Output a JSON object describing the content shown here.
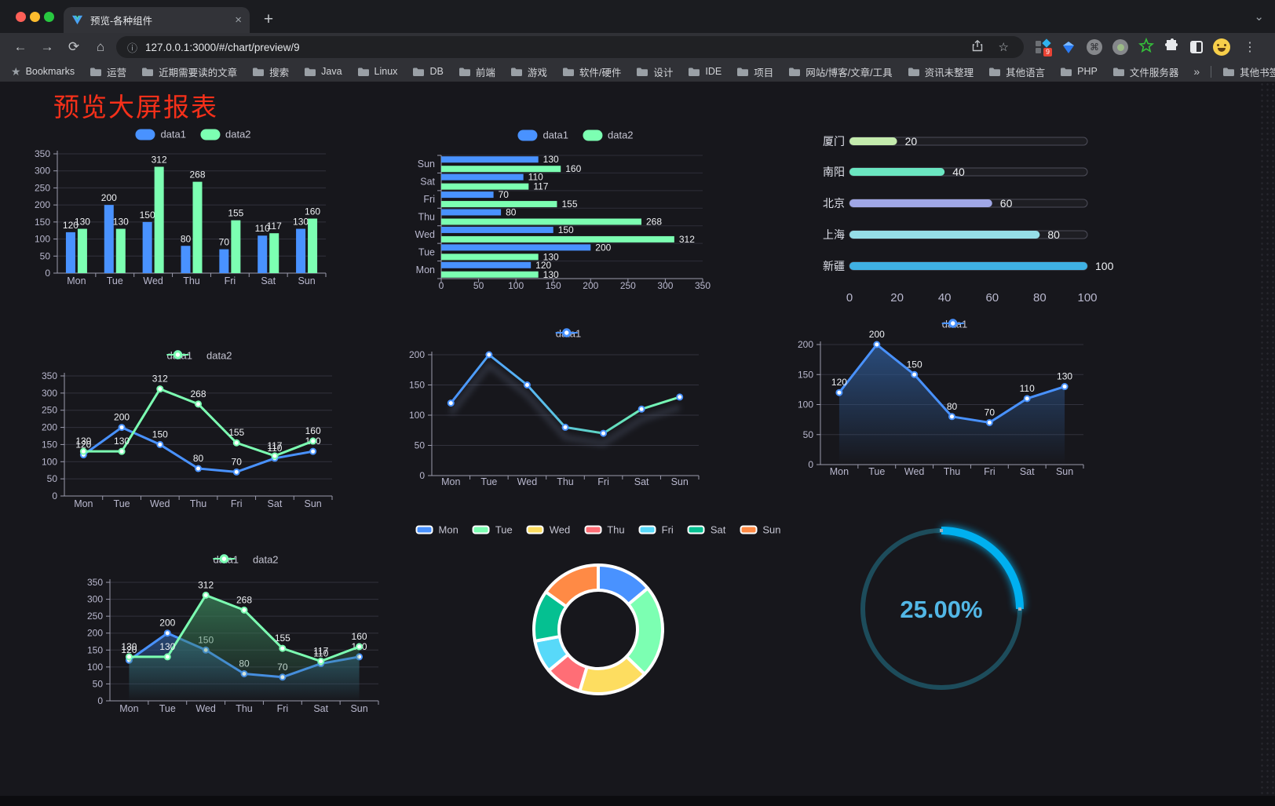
{
  "browser": {
    "tab": {
      "title": "预览-各种组件",
      "close": "×",
      "new_tab": "+",
      "chevron": "⌄"
    },
    "nav": {
      "back": "←",
      "forward": "→",
      "reload": "⟳",
      "home": "⌂"
    },
    "url": {
      "info": "ⓘ",
      "text": "127.0.0.1:3000/#/chart/preview/9"
    },
    "extensions_badge": "9",
    "menu_dots": "⋮",
    "bookmarks_bar": {
      "star": "★",
      "root_label": "Bookmarks",
      "folders": [
        "运营",
        "近期需要读的文章",
        "搜索",
        "Java",
        "Linux",
        "DB",
        "前端",
        "游戏",
        "软件/硬件",
        "设计",
        "IDE",
        "项目",
        "网站/博客/文章/工具",
        "资讯未整理",
        "其他语言",
        "PHP",
        "文件服务器"
      ],
      "overflow": "»",
      "other": "其他书签"
    }
  },
  "page": {
    "title": "预览大屏报表",
    "title_color": "#f5301a"
  },
  "chart_data": [
    {
      "id": "grouped-bar",
      "type": "bar",
      "categories": [
        "Mon",
        "Tue",
        "Wed",
        "Thu",
        "Fri",
        "Sat",
        "Sun"
      ],
      "series": [
        {
          "name": "data1",
          "color": "#4992ff",
          "values": [
            120,
            200,
            150,
            80,
            70,
            110,
            130
          ]
        },
        {
          "name": "data2",
          "color": "#7cffb2",
          "values": [
            130,
            130,
            312,
            268,
            155,
            117,
            160
          ]
        }
      ],
      "ylim": [
        0,
        350
      ],
      "yticks": [
        0,
        50,
        100,
        150,
        200,
        250,
        300,
        350
      ],
      "legend_position": "top",
      "grid": true,
      "value_labels": true
    },
    {
      "id": "horizontal-bar",
      "type": "bar-horizontal",
      "categories": [
        "Mon",
        "Tue",
        "Wed",
        "Thu",
        "Fri",
        "Sat",
        "Sun"
      ],
      "series": [
        {
          "name": "data1",
          "color": "#4992ff",
          "values": [
            120,
            200,
            150,
            80,
            70,
            110,
            130
          ]
        },
        {
          "name": "data2",
          "color": "#7cffb2",
          "values": [
            130,
            130,
            312,
            268,
            155,
            117,
            160
          ]
        }
      ],
      "xlim": [
        0,
        350
      ],
      "xticks": [
        0,
        50,
        100,
        150,
        200,
        250,
        300,
        350
      ],
      "legend_position": "top",
      "value_labels": true
    },
    {
      "id": "progress-bars",
      "type": "progress",
      "rows": [
        {
          "label": "厦门",
          "value": 20,
          "color": "#c4ebad"
        },
        {
          "label": "南阳",
          "value": 40,
          "color": "#6be6c1"
        },
        {
          "label": "北京",
          "value": 60,
          "color": "#a0a7e6"
        },
        {
          "label": "上海",
          "value": 80,
          "color": "#96dee8"
        },
        {
          "label": "新疆",
          "value": 100,
          "color": "#3fb1e3"
        }
      ],
      "xlim": [
        0,
        100
      ],
      "xticks": [
        0,
        20,
        40,
        60,
        80,
        100
      ]
    },
    {
      "id": "line-two-series",
      "type": "line",
      "categories": [
        "Mon",
        "Tue",
        "Wed",
        "Thu",
        "Fri",
        "Sat",
        "Sun"
      ],
      "series": [
        {
          "name": "data1",
          "color": "#4992ff",
          "values": [
            120,
            200,
            150,
            80,
            70,
            110,
            130
          ]
        },
        {
          "name": "data2",
          "color": "#7cffb2",
          "values": [
            130,
            130,
            312,
            268,
            155,
            117,
            160
          ]
        }
      ],
      "ylim": [
        0,
        350
      ],
      "yticks": [
        0,
        50,
        100,
        150,
        200,
        250,
        300,
        350
      ],
      "value_labels": true
    },
    {
      "id": "line-gradient",
      "type": "line",
      "categories": [
        "Mon",
        "Tue",
        "Wed",
        "Thu",
        "Fri",
        "Sat",
        "Sun"
      ],
      "series": [
        {
          "name": "data1",
          "color": "#4992ff",
          "values": [
            120,
            200,
            150,
            80,
            70,
            110,
            130
          ]
        }
      ],
      "line_gradient": [
        "#4992ff",
        "#58b7f5",
        "#5fd7c0",
        "#7cffb2"
      ],
      "shadow": true,
      "ylim": [
        0,
        200
      ],
      "yticks": [
        0,
        50,
        100,
        150,
        200
      ],
      "value_labels": false
    },
    {
      "id": "line-area-single",
      "type": "line",
      "categories": [
        "Mon",
        "Tue",
        "Wed",
        "Thu",
        "Fri",
        "Sat",
        "Sun"
      ],
      "series": [
        {
          "name": "data1",
          "color": "#4992ff",
          "values": [
            120,
            200,
            150,
            80,
            70,
            110,
            130
          ],
          "area": [
            "rgba(45,85,140,0.85)",
            "rgba(45,85,140,0)"
          ]
        }
      ],
      "ylim": [
        0,
        200
      ],
      "yticks": [
        0,
        50,
        100,
        150,
        200
      ],
      "value_labels": true
    },
    {
      "id": "line-area-double",
      "type": "line",
      "categories": [
        "Mon",
        "Tue",
        "Wed",
        "Thu",
        "Fri",
        "Sat",
        "Sun"
      ],
      "series": [
        {
          "name": "data1",
          "color": "#4992ff",
          "values": [
            120,
            200,
            150,
            80,
            70,
            110,
            130
          ],
          "area": [
            "rgba(44,84,140,0.8)",
            "rgba(44,84,140,0)"
          ]
        },
        {
          "name": "data2",
          "color": "#7cffb2",
          "values": [
            130,
            130,
            312,
            268,
            155,
            117,
            160
          ],
          "area": [
            "rgba(56,126,87,0.8)",
            "rgba(56,126,87,0)"
          ]
        }
      ],
      "ylim": [
        0,
        350
      ],
      "yticks": [
        0,
        50,
        100,
        150,
        200,
        250,
        300,
        350
      ],
      "value_labels": true
    },
    {
      "id": "donut",
      "type": "donut",
      "border_color": "#ffffff",
      "items": [
        {
          "label": "Mon",
          "value": 120,
          "color": "#4992ff"
        },
        {
          "label": "Tue",
          "value": 200,
          "color": "#7cffb2"
        },
        {
          "label": "Wed",
          "value": 150,
          "color": "#fddd60"
        },
        {
          "label": "Thu",
          "value": 80,
          "color": "#ff6e76"
        },
        {
          "label": "Fri",
          "value": 70,
          "color": "#58d9f9"
        },
        {
          "label": "Sat",
          "value": 110,
          "color": "#05c091"
        },
        {
          "label": "Sun",
          "value": 130,
          "color": "#ff8a45"
        }
      ]
    },
    {
      "id": "gauge",
      "type": "gauge",
      "value": 25,
      "max": 100,
      "display": "25.00%",
      "progress_color": "#00b0f0",
      "track_color": "#1d4c5b",
      "text_color": "#52b7e6"
    }
  ]
}
